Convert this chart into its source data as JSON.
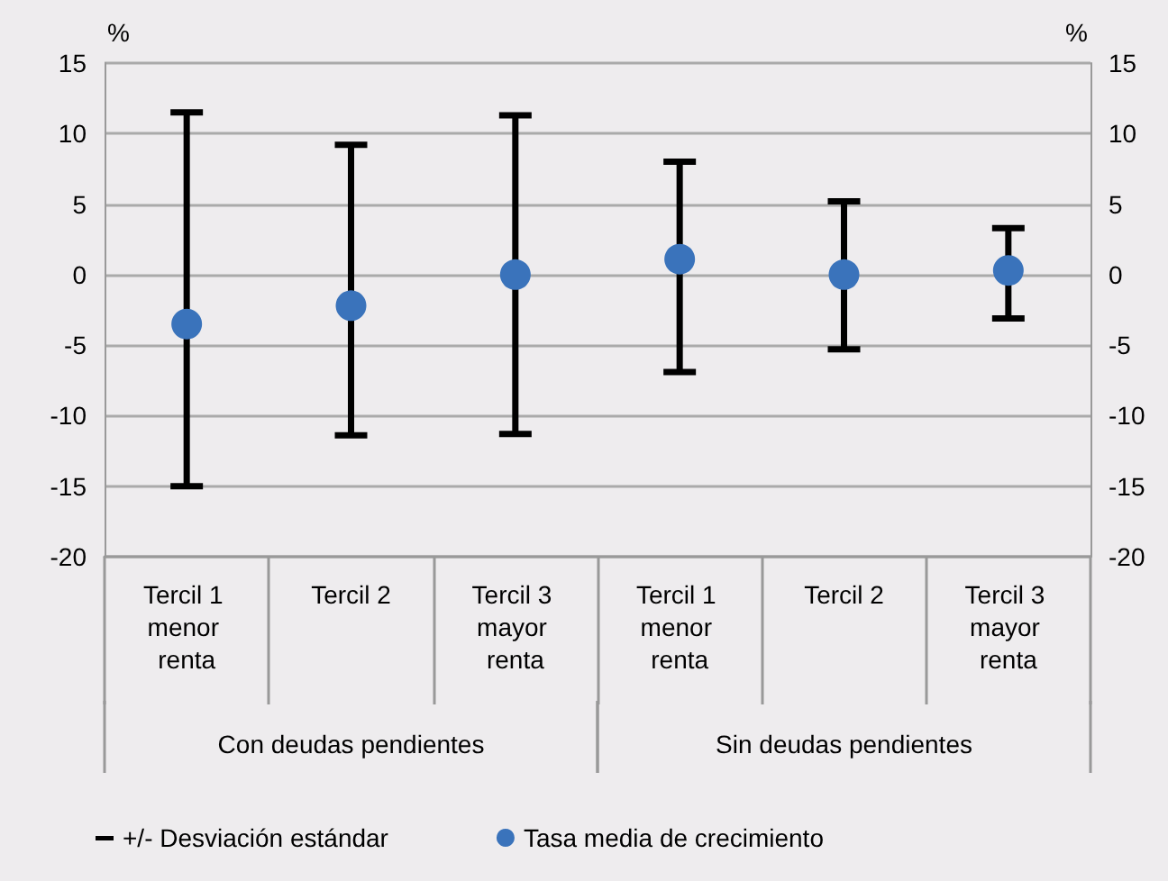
{
  "chart_data": {
    "type": "scatter",
    "ylabel": "%",
    "y2label": "%",
    "categories": [
      "Tercil 1 menor renta",
      "Tercil 2",
      "Tercil 3 mayor renta",
      "Tercil 1 menor renta",
      "Tercil 2",
      "Tercil 3 mayor renta"
    ],
    "series": [
      {
        "name": "Tasa media de crecimiento",
        "color": "#3a73bb",
        "values": [
          -3.5,
          -2.2,
          0,
          1.1,
          0,
          0.3
        ],
        "errors": [
          [
            -15.0,
            11.5
          ],
          [
            -11.4,
            9.2
          ],
          [
            -11.3,
            11.3
          ],
          [
            -6.9,
            8.0
          ],
          [
            -5.3,
            5.2
          ],
          [
            -3.1,
            3.3
          ]
        ]
      }
    ],
    "annotations": [
      "Con deudas pendientes",
      "Sin deudas pendientes",
      "+/- Desviación estándar"
    ],
    "ylim": [
      -20,
      15
    ],
    "yticks": [
      -20,
      -15,
      -10,
      -5,
      0,
      5,
      10,
      15
    ],
    "y2lim": [
      -20,
      15
    ],
    "y2ticks": [
      -20,
      -15,
      -10,
      -5,
      0,
      5,
      10,
      15
    ],
    "grid": "y",
    "legend": "bottom",
    "marker": "circle"
  }
}
